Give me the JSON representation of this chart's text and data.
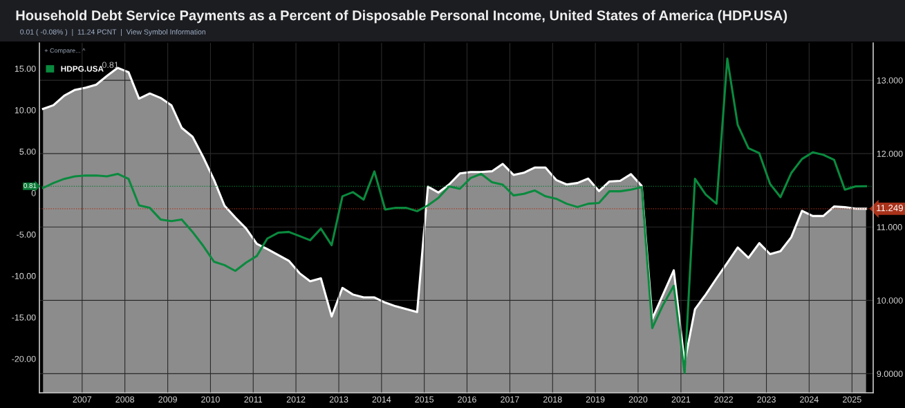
{
  "chart_data": {
    "type": "line",
    "title": "Household Debt Service Payments as a Percent of Disposable Personal Income, United States of America (HDP.USA)",
    "subtitle": "0.01 ( -0.08% )  |  11.24 PCNT  |  View Symbol Information",
    "annotations": [
      "+ Compare... ^",
      "0.81"
    ],
    "x": [
      "2006-02",
      "2006-05",
      "2006-08",
      "2006-11",
      "2007-02",
      "2007-05",
      "2007-08",
      "2007-11",
      "2008-02",
      "2008-05",
      "2008-08",
      "2008-11",
      "2009-02",
      "2009-05",
      "2009-08",
      "2009-11",
      "2010-02",
      "2010-05",
      "2010-08",
      "2010-11",
      "2011-02",
      "2011-05",
      "2011-08",
      "2011-11",
      "2012-02",
      "2012-05",
      "2012-08",
      "2012-11",
      "2013-02",
      "2013-05",
      "2013-08",
      "2013-11",
      "2014-02",
      "2014-05",
      "2014-08",
      "2014-11",
      "2015-02",
      "2015-05",
      "2015-08",
      "2015-11",
      "2016-02",
      "2016-05",
      "2016-08",
      "2016-11",
      "2017-02",
      "2017-05",
      "2017-08",
      "2017-11",
      "2018-02",
      "2018-05",
      "2018-08",
      "2018-11",
      "2019-02",
      "2019-05",
      "2019-08",
      "2019-11",
      "2020-02",
      "2020-05",
      "2020-08",
      "2020-11",
      "2021-02",
      "2021-05",
      "2021-08",
      "2021-11",
      "2022-02",
      "2022-05",
      "2022-08",
      "2022-11",
      "2023-02",
      "2023-05",
      "2023-08",
      "2023-11",
      "2024-02",
      "2024-05",
      "2024-08",
      "2024-11",
      "2025-02",
      "2025-05"
    ],
    "series": [
      {
        "type": "area",
        "axis": "y2",
        "color": "#ffffff",
        "values": [
          12.61,
          12.66,
          12.79,
          12.87,
          12.9,
          12.94,
          13.06,
          13.17,
          13.11,
          12.75,
          12.82,
          12.76,
          12.66,
          12.35,
          12.23,
          11.95,
          11.64,
          11.29,
          11.13,
          10.98,
          10.77,
          10.7,
          10.62,
          10.54,
          10.37,
          10.26,
          10.3,
          9.78,
          10.17,
          10.08,
          10.04,
          10.04,
          9.97,
          9.92,
          9.88,
          9.84,
          11.55,
          11.47,
          11.58,
          11.73,
          11.75,
          11.75,
          11.76,
          11.86,
          11.71,
          11.74,
          11.81,
          11.81,
          11.64,
          11.58,
          11.6,
          11.66,
          11.49,
          11.62,
          11.63,
          11.72,
          11.56,
          9.75,
          10.08,
          10.41,
          9.15,
          9.88,
          10.08,
          10.3,
          10.51,
          10.72,
          10.58,
          10.78,
          10.63,
          10.67,
          10.86,
          11.22,
          11.15,
          11.15,
          11.28,
          11.27,
          11.25,
          11.249
        ]
      },
      {
        "axis": "y",
        "name": "HDPG.USA",
        "color": "#0a8a3e",
        "values": [
          0.6,
          1.2,
          1.7,
          2.0,
          2.1,
          2.1,
          2.0,
          2.3,
          1.7,
          -1.5,
          -1.8,
          -3.2,
          -3.4,
          -3.2,
          -4.7,
          -6.4,
          -8.3,
          -8.7,
          -9.4,
          -8.4,
          -7.6,
          -5.5,
          -4.8,
          -4.7,
          -5.2,
          -5.7,
          -4.3,
          -6.3,
          -0.4,
          0.1,
          -0.8,
          2.6,
          -2.0,
          -1.8,
          -1.8,
          -2.2,
          -1.5,
          -0.6,
          0.8,
          0.5,
          1.8,
          2.3,
          1.3,
          1.0,
          -0.3,
          -0.1,
          0.3,
          -0.4,
          -0.7,
          -1.3,
          -1.7,
          -1.3,
          -1.2,
          0.2,
          0.2,
          0.4,
          0.7,
          -16.3,
          -13.5,
          -11.2,
          -21.7,
          1.7,
          -0.2,
          -1.3,
          16.2,
          8.2,
          5.4,
          4.8,
          1.1,
          -0.5,
          2.4,
          4.1,
          4.9,
          4.6,
          4.0,
          0.4,
          0.8,
          0.81
        ]
      }
    ],
    "xlim": [
      "2006-01",
      "2025-07"
    ],
    "xticks": [
      {
        "value": "2007-01",
        "label": "2007"
      },
      {
        "value": "2008-01",
        "label": "2008"
      },
      {
        "value": "2009-01",
        "label": "2009"
      },
      {
        "value": "2010-01",
        "label": "2010"
      },
      {
        "value": "2011-01",
        "label": "2011"
      },
      {
        "value": "2012-01",
        "label": "2012"
      },
      {
        "value": "2013-01",
        "label": "2013"
      },
      {
        "value": "2014-01",
        "label": "2014"
      },
      {
        "value": "2015-01",
        "label": "2015"
      },
      {
        "value": "2016-01",
        "label": "2016"
      },
      {
        "value": "2017-01",
        "label": "2017"
      },
      {
        "value": "2018-01",
        "label": "2018"
      },
      {
        "value": "2019-01",
        "label": "2019"
      },
      {
        "value": "2020-01",
        "label": "2020"
      },
      {
        "value": "2021-01",
        "label": "2021"
      },
      {
        "value": "2022-01",
        "label": "2022"
      },
      {
        "value": "2023-01",
        "label": "2023"
      },
      {
        "value": "2024-01",
        "label": "2024"
      },
      {
        "value": "2025-01",
        "label": "2025"
      }
    ],
    "ylim": [
      -24.1,
      18.1
    ],
    "yticks": [
      {
        "value": 15,
        "label": "15.00"
      },
      {
        "value": 10,
        "label": "10.00"
      },
      {
        "value": 5,
        "label": "5.00"
      },
      0,
      {
        "value": -5,
        "label": "-5.00"
      },
      {
        "value": -10,
        "label": "-10.00"
      },
      {
        "value": -15,
        "label": "-15.00"
      },
      {
        "value": -20,
        "label": "-20.00"
      }
    ],
    "y2lim": [
      8.74,
      13.51
    ],
    "y2ticks": [
      {
        "value": 13,
        "label": "13.000"
      },
      {
        "value": 12,
        "label": "12.000"
      },
      {
        "value": 11,
        "label": "11.000"
      },
      {
        "value": 10,
        "label": "10.000"
      },
      {
        "value": 9,
        "label": "9.0000"
      }
    ],
    "ref_lines": [
      {
        "axis": "y2",
        "value": 11.249,
        "label": "11.249",
        "color": "#a8321a",
        "line_style": "dotted"
      },
      {
        "axis": "y",
        "value": 0.81,
        "label": "0.81",
        "color": "#0a7a36",
        "line_style": "dotted"
      }
    ],
    "grid": true,
    "legend": "top left"
  }
}
